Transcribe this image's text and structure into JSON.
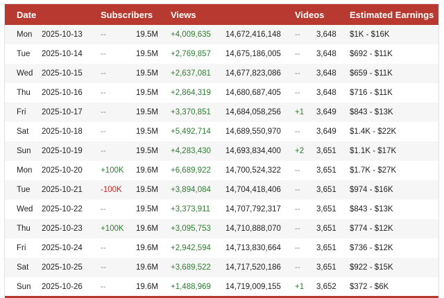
{
  "colors": {
    "header": "#b8392f",
    "positive": "#2e7d32",
    "negative": "#c62828"
  },
  "headers": {
    "date": "Date",
    "subscribers": "Subscribers",
    "views": "Views",
    "videos": "Videos",
    "earnings": "Estimated Earnings"
  },
  "rows": [
    {
      "day": "Mon",
      "date": "2025-10-13",
      "sub_change": "--",
      "subs": "19.5M",
      "view_change": "+4,009,635",
      "views": "14,672,416,148",
      "video_change": "--",
      "videos": "3,648",
      "earnings": "$1K - $16K"
    },
    {
      "day": "Tue",
      "date": "2025-10-14",
      "sub_change": "--",
      "subs": "19.5M",
      "view_change": "+2,769,857",
      "views": "14,675,186,005",
      "video_change": "--",
      "videos": "3,648",
      "earnings": "$692 - $11K"
    },
    {
      "day": "Wed",
      "date": "2025-10-15",
      "sub_change": "--",
      "subs": "19.5M",
      "view_change": "+2,637,081",
      "views": "14,677,823,086",
      "video_change": "--",
      "videos": "3,648",
      "earnings": "$659 - $11K"
    },
    {
      "day": "Thu",
      "date": "2025-10-16",
      "sub_change": "--",
      "subs": "19.5M",
      "view_change": "+2,864,319",
      "views": "14,680,687,405",
      "video_change": "--",
      "videos": "3,648",
      "earnings": "$716 - $11K"
    },
    {
      "day": "Fri",
      "date": "2025-10-17",
      "sub_change": "--",
      "subs": "19.5M",
      "view_change": "+3,370,851",
      "views": "14,684,058,256",
      "video_change": "+1",
      "videos": "3,649",
      "earnings": "$843 - $13K"
    },
    {
      "day": "Sat",
      "date": "2025-10-18",
      "sub_change": "--",
      "subs": "19.5M",
      "view_change": "+5,492,714",
      "views": "14,689,550,970",
      "video_change": "--",
      "videos": "3,649",
      "earnings": "$1.4K - $22K"
    },
    {
      "day": "Sun",
      "date": "2025-10-19",
      "sub_change": "--",
      "subs": "19.5M",
      "view_change": "+4,283,430",
      "views": "14,693,834,400",
      "video_change": "+2",
      "videos": "3,651",
      "earnings": "$1.1K - $17K"
    },
    {
      "day": "Mon",
      "date": "2025-10-20",
      "sub_change": "+100K",
      "subs": "19.6M",
      "view_change": "+6,689,922",
      "views": "14,700,524,322",
      "video_change": "--",
      "videos": "3,651",
      "earnings": "$1.7K - $27K"
    },
    {
      "day": "Tue",
      "date": "2025-10-21",
      "sub_change": "-100K",
      "subs": "19.5M",
      "view_change": "+3,894,084",
      "views": "14,704,418,406",
      "video_change": "--",
      "videos": "3,651",
      "earnings": "$974 - $16K"
    },
    {
      "day": "Wed",
      "date": "2025-10-22",
      "sub_change": "--",
      "subs": "19.5M",
      "view_change": "+3,373,911",
      "views": "14,707,792,317",
      "video_change": "--",
      "videos": "3,651",
      "earnings": "$843 - $13K"
    },
    {
      "day": "Thu",
      "date": "2025-10-23",
      "sub_change": "+100K",
      "subs": "19.6M",
      "view_change": "+3,095,753",
      "views": "14,710,888,070",
      "video_change": "--",
      "videos": "3,651",
      "earnings": "$774 - $12K"
    },
    {
      "day": "Fri",
      "date": "2025-10-24",
      "sub_change": "--",
      "subs": "19.6M",
      "view_change": "+2,942,594",
      "views": "14,713,830,664",
      "video_change": "--",
      "videos": "3,651",
      "earnings": "$736 - $12K"
    },
    {
      "day": "Sat",
      "date": "2025-10-25",
      "sub_change": "--",
      "subs": "19.6M",
      "view_change": "+3,689,522",
      "views": "14,717,520,186",
      "video_change": "--",
      "videos": "3,651",
      "earnings": "$922 - $15K"
    },
    {
      "day": "Sun",
      "date": "2025-10-26",
      "sub_change": "--",
      "subs": "19.6M",
      "view_change": "+1,488,969",
      "views": "14,719,009,155",
      "video_change": "+1",
      "videos": "3,652",
      "earnings": "$372 - $6K"
    }
  ]
}
